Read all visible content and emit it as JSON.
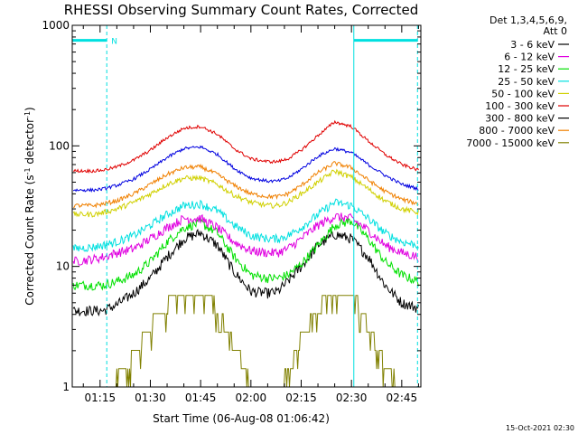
{
  "chart_data": {
    "type": "line",
    "title": "RHESSI Observing Summary Count Rates, Corrected",
    "xlabel": "Start Time (06-Aug-08 01:06:42)",
    "ylabel_prefix": "Corrected Count Rate (s",
    "ylabel_sup1": "-1",
    "ylabel_middle": " detector",
    "ylabel_sup2": "-1",
    "ylabel_suffix": ")",
    "yscale": "log",
    "ylim": [
      1,
      1000
    ],
    "x_minutes_range": [
      66.7,
      170.7
    ],
    "xtick_labels": [
      {
        "label": "01:15",
        "minutes": 75
      },
      {
        "label": "01:30",
        "minutes": 90
      },
      {
        "label": "01:45",
        "minutes": 105
      },
      {
        "label": "02:00",
        "minutes": 120
      },
      {
        "label": "02:15",
        "minutes": 135
      },
      {
        "label": "02:30",
        "minutes": 150
      },
      {
        "label": "02:45",
        "minutes": 165
      }
    ],
    "ytick_labels": [
      {
        "label": "1",
        "value": 1
      },
      {
        "label": "10",
        "value": 10
      },
      {
        "label": "100",
        "value": 100
      },
      {
        "label": "1000",
        "value": 1000
      }
    ],
    "legend_header": [
      "Det 1,3,4,5,6,9,",
      "Att 0"
    ],
    "legend_placement": "right",
    "series": [
      {
        "name": "3 - 6 keV",
        "color": "#000000",
        "x": [
          67,
          73,
          76,
          80,
          85,
          90,
          95,
          100,
          105,
          110,
          115,
          120,
          125,
          128,
          131,
          135,
          140,
          145,
          150,
          155,
          160,
          165,
          170
        ],
        "y": [
          4.3,
          4.3,
          4.3,
          4.8,
          6,
          8,
          12,
          17,
          19,
          15,
          9,
          6.2,
          6,
          6.2,
          7.5,
          10,
          15,
          18.5,
          17,
          12,
          7,
          5,
          4.5
        ]
      },
      {
        "name": "6 - 12 keV",
        "color": "#e000e0",
        "x": [
          67,
          73,
          76,
          80,
          85,
          90,
          95,
          100,
          105,
          110,
          115,
          120,
          125,
          128,
          131,
          135,
          140,
          145,
          150,
          155,
          160,
          165,
          170
        ],
        "y": [
          11,
          11.5,
          12,
          13,
          14,
          17,
          21,
          25,
          25,
          21,
          16,
          13.5,
          13,
          13,
          14,
          17,
          22,
          26,
          25,
          20,
          15,
          13,
          12
        ]
      },
      {
        "name": "12 - 25 keV",
        "color": "#00e000",
        "x": [
          67,
          73,
          76,
          80,
          85,
          90,
          95,
          100,
          105,
          110,
          115,
          120,
          125,
          128,
          131,
          135,
          140,
          145,
          150,
          155,
          160,
          165,
          170
        ],
        "y": [
          7,
          7,
          7,
          7.5,
          8.5,
          11,
          16,
          21,
          23,
          19,
          12,
          8.5,
          8,
          8,
          8.5,
          10.5,
          15,
          22,
          24,
          17,
          11,
          8.5,
          7.5
        ]
      },
      {
        "name": "25 - 50 keV",
        "color": "#00e0e0",
        "x": [
          67,
          73,
          76,
          80,
          85,
          90,
          95,
          100,
          105,
          110,
          115,
          120,
          125,
          128,
          131,
          135,
          140,
          145,
          150,
          155,
          160,
          165,
          170
        ],
        "y": [
          14,
          14.5,
          15,
          16,
          18,
          22,
          27,
          32,
          33,
          29,
          22,
          18,
          17,
          17,
          18,
          21,
          27,
          34,
          32,
          25,
          19,
          16,
          15
        ]
      },
      {
        "name": "50 - 100 keV",
        "color": "#d0d000",
        "x": [
          67,
          73,
          76,
          80,
          85,
          90,
          95,
          100,
          105,
          110,
          115,
          120,
          125,
          128,
          131,
          135,
          140,
          145,
          150,
          155,
          160,
          165,
          170
        ],
        "y": [
          27,
          27,
          28,
          30,
          34,
          40,
          48,
          54,
          54,
          48,
          39,
          34,
          32,
          32,
          34,
          40,
          50,
          62,
          55,
          44,
          35,
          30,
          28
        ]
      },
      {
        "name": "100 - 300 keV",
        "color": "#e00000",
        "x": [
          67,
          73,
          76,
          80,
          85,
          90,
          95,
          100,
          105,
          110,
          115,
          120,
          125,
          128,
          131,
          135,
          140,
          145,
          150,
          155,
          160,
          165,
          170
        ],
        "y": [
          62,
          62,
          63,
          67,
          76,
          92,
          117,
          140,
          145,
          125,
          95,
          78,
          74,
          74,
          78,
          92,
          122,
          158,
          145,
          110,
          85,
          70,
          63
        ]
      },
      {
        "name": "300 - 800 keV",
        "color": "#000000",
        "x": [],
        "y": []
      },
      {
        "name": "800 - 7000 keV",
        "color": "#f08000",
        "x": [
          67,
          73,
          76,
          80,
          85,
          90,
          95,
          100,
          105,
          110,
          115,
          120,
          125,
          128,
          131,
          135,
          140,
          145,
          150,
          155,
          160,
          165,
          170
        ],
        "y": [
          32,
          32,
          33,
          35,
          40,
          48,
          58,
          66,
          67,
          58,
          47,
          40,
          38,
          38,
          40,
          47,
          60,
          72,
          66,
          52,
          42,
          36,
          33
        ]
      },
      {
        "name": "7000 - 15000 keV",
        "color": "#808000",
        "x": [
          67,
          73,
          76,
          80,
          85,
          90,
          95,
          100,
          105,
          110,
          115,
          120,
          125,
          128,
          131,
          135,
          140,
          145,
          150,
          155,
          160,
          165,
          170
        ],
        "y": [
          1,
          1,
          1,
          1.2,
          1.8,
          3.2,
          4.8,
          6.5,
          6.5,
          4.5,
          2.2,
          1.1,
          1,
          1,
          1.3,
          2.5,
          4.5,
          6.5,
          6.3,
          3.2,
          1.5,
          1,
          1
        ]
      },
      {
        "name": "",
        "color": "#0000e0",
        "x": [
          67,
          73,
          76,
          80,
          85,
          90,
          95,
          100,
          105,
          110,
          115,
          120,
          125,
          128,
          131,
          135,
          140,
          145,
          150,
          155,
          160,
          165,
          170
        ],
        "y": [
          43,
          43,
          44,
          47,
          53,
          64,
          80,
          95,
          98,
          85,
          65,
          54,
          51,
          51,
          54,
          64,
          82,
          95,
          88,
          70,
          57,
          48,
          44
        ]
      }
    ],
    "annotations": {
      "vertical_lines": [
        {
          "minutes": 66.7,
          "style": "solid",
          "color": "#00e0e0"
        },
        {
          "minutes": 77.0,
          "style": "dashed",
          "color": "#00e0e0"
        },
        {
          "minutes": 150.7,
          "style": "solid",
          "color": "#00e0e0"
        },
        {
          "minutes": 169.7,
          "style": "dashed",
          "color": "#00e0e0"
        }
      ],
      "night_bars": [
        {
          "start": 66.7,
          "end": 77.0,
          "y": 750,
          "color": "#00e0e0",
          "label": "N"
        },
        {
          "start": 150.7,
          "end": 169.7,
          "y": 750,
          "color": "#00e0e0",
          "label": ""
        }
      ]
    },
    "footer": "15-Oct-2021 02:30"
  }
}
